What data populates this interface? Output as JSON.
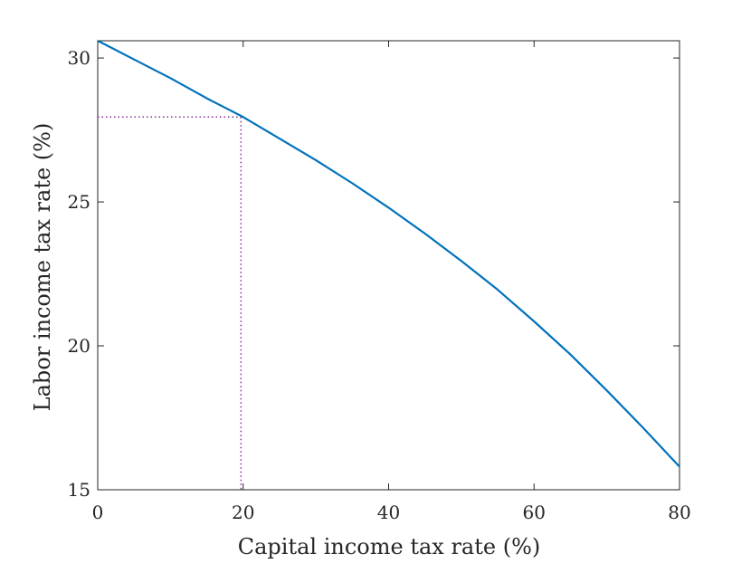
{
  "chart_data": {
    "type": "line",
    "title": "",
    "xlabel": "Capital income tax rate (%)",
    "ylabel": "Labor income tax rate (%)",
    "xlim": [
      0,
      80
    ],
    "ylim": [
      15,
      30.6
    ],
    "x_ticks": [
      "0",
      "20",
      "40",
      "60",
      "80"
    ],
    "y_ticks": [
      "15",
      "20",
      "25",
      "30"
    ],
    "grid": false,
    "legend": "none",
    "series": [
      {
        "color": "#0072BD",
        "x": [
          0,
          5,
          10,
          15,
          20,
          25,
          30,
          35,
          40,
          45,
          50,
          55,
          60,
          65,
          70,
          75,
          80
        ],
        "y": [
          30.6,
          29.95,
          29.3,
          28.6,
          27.95,
          27.2,
          26.45,
          25.65,
          24.8,
          23.9,
          22.95,
          21.95,
          20.85,
          19.7,
          18.45,
          17.15,
          15.8
        ]
      }
    ],
    "reference": {
      "x": 19.7,
      "y": 27.95,
      "color": "#7E2F8E",
      "style": "dotted"
    }
  }
}
